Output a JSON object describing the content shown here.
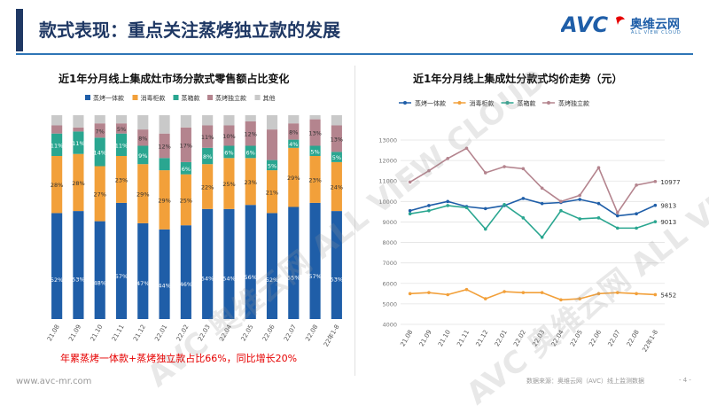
{
  "slide": {
    "title": "款式表现：重点关注蒸烤独立款的发展",
    "logo_text": "AVC",
    "logo_cn": "奥维云网",
    "logo_en": "ALL VIEW CLOUD",
    "watermark": "AVC 奥维云网 ALL VIEW CLOUD",
    "conclusion": "年累蒸烤一体款+蒸烤独立款占比66%，同比增长20%",
    "footer_url": "www.avc-mr.com",
    "footer_source": "数据来源：奥维云网（AVC）线上监测数据",
    "page_number": "- 4 -",
    "colors": {
      "title_navy": "#1f3864",
      "accent_blue": "#2e75b6",
      "integrated": "#1f5ea8",
      "disinfect": "#f2a03a",
      "steam_box": "#2aa690",
      "steam_oven": "#b4848e",
      "other": "#c9c9c9",
      "conclusion_red": "#e60000"
    }
  },
  "chart_data": [
    {
      "type": "bar",
      "stacked": "percent",
      "title": "近1年分月线上集成灶市场分款式零售额占比变化",
      "legend_position": "top",
      "categories": [
        "21.08",
        "21.09",
        "21.10",
        "21.11",
        "21.12",
        "22.01",
        "22.02",
        "22.03",
        "22.04",
        "22.05",
        "22.06",
        "22.07",
        "22.08",
        "22年1-8"
      ],
      "series": [
        {
          "name": "蒸烤一体款",
          "values": [
            52,
            53,
            48,
            57,
            47,
            44,
            46,
            54,
            54,
            56,
            52,
            55,
            57,
            53
          ],
          "labels": [
            "52%",
            "53%",
            "48%",
            "57%",
            "47%",
            "44%",
            "46%",
            "54%",
            "54%",
            "56%",
            "52%",
            "55%",
            "57%",
            "53%"
          ]
        },
        {
          "name": "消毒柜款",
          "values": [
            28,
            28,
            27,
            23,
            29,
            29,
            25,
            22,
            25,
            23,
            21,
            29,
            23,
            24
          ],
          "labels": [
            "28%",
            "28%",
            "27%",
            "23%",
            "29%",
            "29%",
            "25%",
            "22%",
            "25%",
            "23%",
            "21%",
            "29%",
            "23%",
            "24%"
          ]
        },
        {
          "name": "蒸箱款",
          "values": [
            11,
            11,
            14,
            11,
            9,
            6,
            6,
            8,
            6,
            6,
            5,
            4,
            5,
            5
          ],
          "labels": [
            "11%",
            "11%",
            "14%",
            "11%",
            "9%",
            "",
            "6%",
            "8%",
            "6%",
            "6%",
            "5%",
            "4%",
            "5%",
            "5%"
          ]
        },
        {
          "name": "蒸烤独立款",
          "values": [
            4,
            2,
            7,
            5,
            8,
            12,
            17,
            11,
            10,
            12,
            15,
            8,
            13,
            13
          ],
          "labels": [
            "",
            "",
            "7%",
            "5%",
            "8%",
            "12%",
            "17%",
            "11%",
            "10%",
            "12%",
            "",
            "8%",
            "13%",
            "13%"
          ]
        },
        {
          "name": "其他",
          "values": [
            5,
            6,
            4,
            4,
            7,
            9,
            6,
            5,
            5,
            3,
            7,
            4,
            2,
            5
          ],
          "labels": [
            "",
            "",
            "",
            "",
            "",
            "",
            "",
            "",
            "",
            "",
            "",
            "",
            "",
            ""
          ]
        }
      ]
    },
    {
      "type": "line",
      "title": "近1年分月线上集成灶分款式均价走势（元）",
      "legend_position": "top",
      "categories": [
        "21.08",
        "21.09",
        "21.10",
        "21.11",
        "21.12",
        "22.01",
        "22.02",
        "22.03",
        "22.04",
        "22.05",
        "22.06",
        "22.07",
        "22.08",
        "22年1-8"
      ],
      "ylim": [
        4000,
        13000
      ],
      "yticks": [
        "4000",
        "5000",
        "6000",
        "7000",
        "8000",
        "9000",
        "10000",
        "11000",
        "12000",
        "13000"
      ],
      "grid": true,
      "series": [
        {
          "name": "蒸烤一体款",
          "values": [
            9550,
            9800,
            10000,
            9750,
            9650,
            9800,
            10150,
            9900,
            9950,
            10100,
            9900,
            9300,
            9400,
            9813
          ],
          "end_label": "9813"
        },
        {
          "name": "消毒柜款",
          "values": [
            5500,
            5550,
            5450,
            5700,
            5250,
            5600,
            5550,
            5550,
            5200,
            5250,
            5500,
            5550,
            5500,
            5452
          ],
          "end_label": "5452"
        },
        {
          "name": "蒸箱款",
          "values": [
            9400,
            9550,
            9800,
            9700,
            8650,
            9850,
            9200,
            8250,
            9550,
            9150,
            9200,
            8700,
            8700,
            9013
          ],
          "end_label": "9013"
        },
        {
          "name": "蒸烤独立款",
          "values": [
            10950,
            11500,
            12100,
            12600,
            11400,
            11700,
            11600,
            10650,
            10000,
            10300,
            11650,
            9450,
            10800,
            10977
          ],
          "end_label": "10977"
        }
      ]
    }
  ]
}
